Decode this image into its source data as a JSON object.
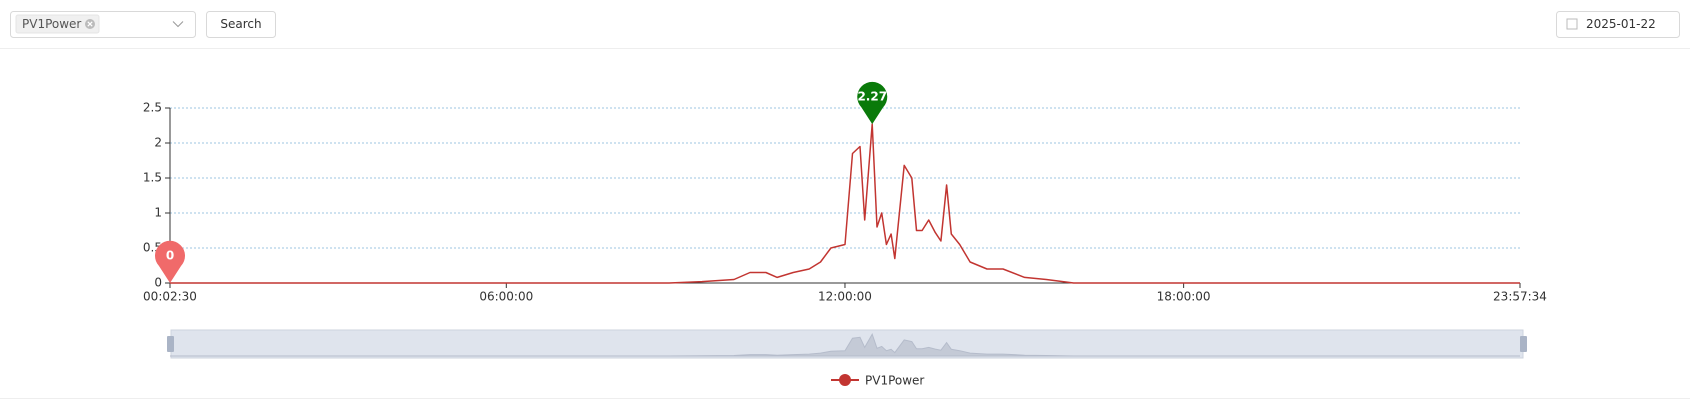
{
  "toolbar": {
    "selected": "PV1Power",
    "search": "Search",
    "date": "2025-01-22"
  },
  "chart_data": {
    "type": "line",
    "x": [
      "00:02:30",
      "08:53:00",
      "09:28:00",
      "10:02:00",
      "10:19:00",
      "10:36:00",
      "10:48:00",
      "11:05:00",
      "11:22:00",
      "11:34:00",
      "11:45:00",
      "12:00:00",
      "12:08:00",
      "12:16:00",
      "12:21:00",
      "12:29:00",
      "12:34:00",
      "12:39:00",
      "12:44:00",
      "12:49:00",
      "12:53:00",
      "13:03:00",
      "13:11:00",
      "13:16:00",
      "13:22:00",
      "13:29:00",
      "13:36:00",
      "13:42:00",
      "13:48:00",
      "13:53:00",
      "14:02:00",
      "14:13:00",
      "14:31:00",
      "14:48:00",
      "15:11:00",
      "15:34:00",
      "16:03:00",
      "23:57:34"
    ],
    "series": [
      {
        "name": "PV1Power",
        "color": "#c23531",
        "values": [
          0,
          0,
          0.02,
          0.05,
          0.15,
          0.15,
          0.08,
          0.15,
          0.2,
          0.3,
          0.5,
          0.55,
          1.85,
          1.95,
          0.9,
          2.27,
          0.8,
          1.0,
          0.55,
          0.7,
          0.35,
          1.68,
          1.5,
          0.75,
          0.75,
          0.9,
          0.72,
          0.6,
          1.4,
          0.7,
          0.55,
          0.3,
          0.2,
          0.2,
          0.08,
          0.05,
          0,
          0
        ]
      }
    ],
    "xlim": [
      "00:02:30",
      "23:57:34"
    ],
    "xticks": [
      "00:02:30",
      "06:00:00",
      "12:00:00",
      "18:00:00",
      "23:57:34"
    ],
    "ylim": [
      0,
      2.5
    ],
    "yticks": [
      0,
      0.5,
      1,
      1.5,
      2,
      2.5
    ],
    "grid": true,
    "mark_points": [
      {
        "x": "00:02:30",
        "value": 0,
        "color": "#f06a6a"
      },
      {
        "x": "12:29:00",
        "value": 2.27,
        "color": "#0a7a0a"
      }
    ],
    "legend": "bottom"
  }
}
